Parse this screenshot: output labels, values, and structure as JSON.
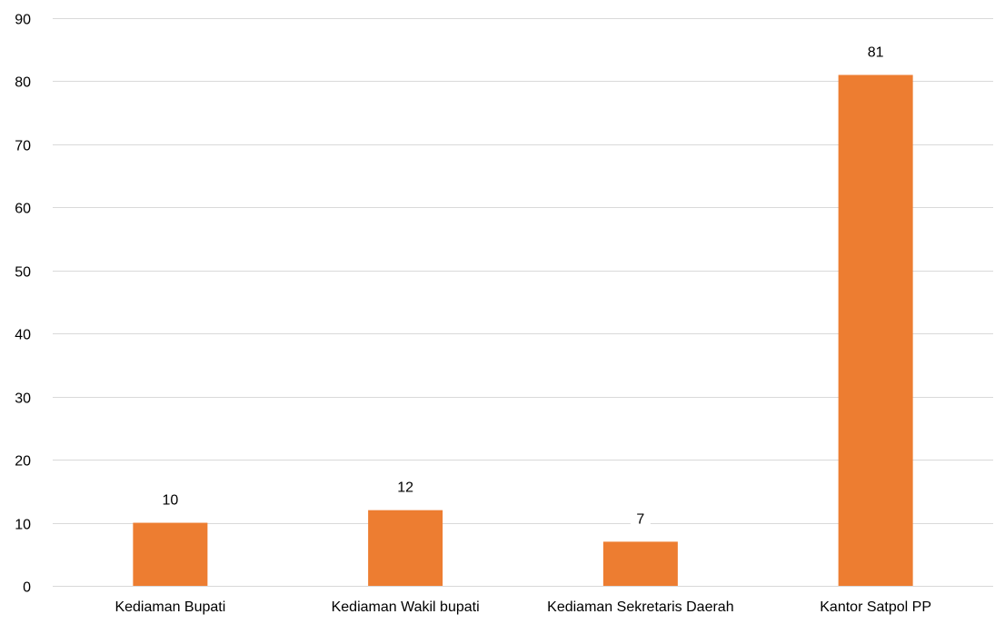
{
  "chart_data": {
    "type": "bar",
    "title": "",
    "xlabel": "",
    "ylabel": "",
    "categories": [
      "Kediaman Bupati",
      "Kediaman Wakil bupati",
      "Kediaman Sekretaris Daerah",
      "Kantor Satpol PP"
    ],
    "values": [
      10,
      12,
      7,
      81
    ],
    "data_labels": [
      "10",
      "12",
      "7",
      "81"
    ],
    "ylim": [
      0,
      90
    ],
    "yticks": [
      0,
      10,
      20,
      30,
      40,
      50,
      60,
      70,
      80,
      90
    ],
    "grid": true,
    "legend": "none",
    "bar_color": "#ED7D31"
  }
}
